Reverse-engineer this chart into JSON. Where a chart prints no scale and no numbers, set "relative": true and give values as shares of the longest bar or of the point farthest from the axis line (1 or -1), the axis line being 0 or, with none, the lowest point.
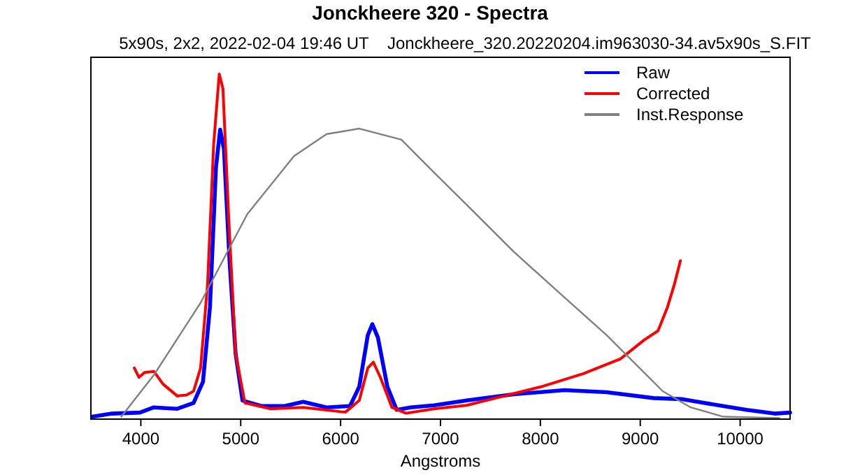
{
  "chart_data": {
    "type": "line",
    "title": "Jonckheere 320 - Spectra",
    "subtitle": "5x90s, 2x2, 2022-02-04 19:46 UT    Jonckheere_320.20220204.im963030-34.av5x90s_S.FIT",
    "xlabel": "Angstroms",
    "relative": true,
    "xlim": [
      3500,
      10500
    ],
    "xticks": [
      4000,
      5000,
      6000,
      7000,
      8000,
      9000,
      10000
    ],
    "legend": "top right",
    "grid": false,
    "marker": "none",
    "line_style": "solid",
    "series": [
      {
        "name": "Raw",
        "color": "#0000ff",
        "x": [
          3514,
          3710,
          3990,
          4130,
          4365,
          4528,
          4622,
          4692,
          4752,
          4794,
          4832,
          4888,
          4949,
          5018,
          5206,
          5439,
          5626,
          5859,
          6094,
          6187,
          6272,
          6318,
          6374,
          6468,
          6561,
          6701,
          6935,
          7262,
          7730,
          8243,
          8664,
          9131,
          9412,
          9785,
          10065,
          10346,
          10500
        ],
        "values": [
          0.007,
          0.016,
          0.019,
          0.034,
          0.03,
          0.047,
          0.108,
          0.324,
          0.729,
          0.839,
          0.783,
          0.459,
          0.189,
          0.054,
          0.038,
          0.038,
          0.05,
          0.034,
          0.038,
          0.094,
          0.243,
          0.275,
          0.236,
          0.094,
          0.027,
          0.034,
          0.04,
          0.054,
          0.072,
          0.084,
          0.078,
          0.061,
          0.058,
          0.04,
          0.027,
          0.016,
          0.019
        ]
      },
      {
        "name": "Corrected",
        "color": "#ff0000",
        "x": [
          3935,
          3981,
          4037,
          4131,
          4224,
          4365,
          4458,
          4528,
          4598,
          4668,
          4729,
          4785,
          4822,
          4878,
          4949,
          5042,
          5299,
          5626,
          6047,
          6187,
          6272,
          6328,
          6398,
          6514,
          6654,
          6935,
          7262,
          7636,
          8010,
          8431,
          8804,
          9038,
          9178,
          9272,
          9342,
          9402
        ],
        "values": [
          0.148,
          0.121,
          0.135,
          0.138,
          0.101,
          0.067,
          0.07,
          0.081,
          0.148,
          0.391,
          0.796,
          1,
          0.958,
          0.594,
          0.189,
          0.047,
          0.03,
          0.034,
          0.02,
          0.054,
          0.148,
          0.165,
          0.121,
          0.034,
          0.017,
          0.03,
          0.04,
          0.067,
          0.094,
          0.132,
          0.175,
          0.229,
          0.256,
          0.324,
          0.391,
          0.459
        ]
      },
      {
        "name": "Inst.Response",
        "color": "#808080",
        "x": [
          3804,
          4131,
          4598,
          5066,
          5533,
          5859,
          6187,
          6608,
          6935,
          7262,
          7730,
          8197,
          8664,
          8944,
          9225,
          9505,
          9832,
          10393
        ],
        "values": [
          0.007,
          0.128,
          0.337,
          0.594,
          0.762,
          0.826,
          0.842,
          0.81,
          0.715,
          0.621,
          0.486,
          0.364,
          0.243,
          0.162,
          0.081,
          0.034,
          0.007,
          0.003
        ]
      }
    ]
  }
}
